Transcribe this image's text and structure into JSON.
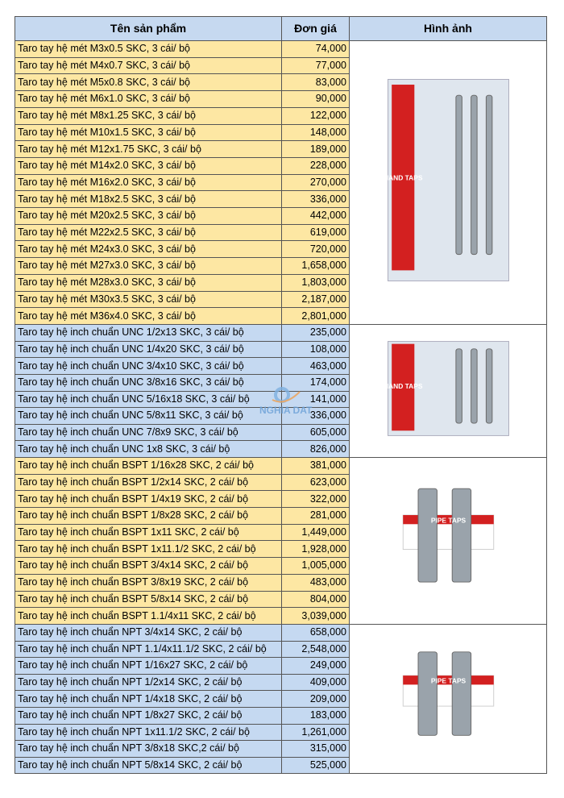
{
  "header": {
    "name": "Tên sản phẩm",
    "price": "Đơn giá",
    "image": "Hình ảnh"
  },
  "watermark": "NGHIA DAT",
  "colors": {
    "header": "#c6d9f0",
    "yellow": "#fde7a3",
    "blue": "#c5d9f1"
  },
  "groups": [
    {
      "color": "yellow",
      "image": {
        "icon": "hand-taps-box-image",
        "label": "HAND TAPS"
      },
      "rows": [
        [
          "Taro tay hệ mét M3x0.5 SKC, 3 cái/ bộ",
          "74,000"
        ],
        [
          "Taro tay hệ mét M4x0.7 SKC, 3 cái/ bộ",
          "77,000"
        ],
        [
          "Taro tay hệ mét M5x0.8 SKC, 3 cái/ bộ",
          "83,000"
        ],
        [
          "Taro tay hệ mét M6x1.0 SKC, 3 cái/ bộ",
          "90,000"
        ],
        [
          "Taro tay hệ mét M8x1.25 SKC, 3 cái/ bộ",
          "122,000"
        ],
        [
          "Taro tay hệ mét M10x1.5 SKC, 3 cái/ bộ",
          "148,000"
        ],
        [
          "Taro tay hệ mét M12x1.75 SKC, 3 cái/ bộ",
          "189,000"
        ],
        [
          "Taro tay hệ mét M14x2.0 SKC, 3 cái/ bộ",
          "228,000"
        ],
        [
          "Taro tay hệ mét M16x2.0 SKC, 3 cái/ bộ",
          "270,000"
        ],
        [
          "Taro tay hệ mét M18x2.5 SKC, 3 cái/ bộ",
          "336,000"
        ],
        [
          "Taro tay hệ mét M20x2.5 SKC, 3 cái/ bộ",
          "442,000"
        ],
        [
          "Taro tay hệ mét M22x2.5 SKC, 3 cái/ bộ",
          "619,000"
        ],
        [
          "Taro tay hệ mét M24x3.0 SKC, 3 cái/ bộ",
          "720,000"
        ],
        [
          "Taro tay hệ mét M27x3.0 SKC, 3 cái/ bộ",
          "1,658,000"
        ],
        [
          "Taro tay hệ mét M28x3.0 SKC, 3 cái/ bộ",
          "1,803,000"
        ],
        [
          "Taro tay hệ mét M30x3.5 SKC, 3 cái/ bộ",
          "2,187,000"
        ],
        [
          "Taro tay hệ mét M36x4.0 SKC, 3 cái/ bộ",
          "2,801,000"
        ]
      ]
    },
    {
      "color": "blue",
      "image": {
        "icon": "hand-taps-unc-image",
        "label": "HAND TAPS"
      },
      "rows": [
        [
          "Taro tay hệ inch chuẩn UNC 1/2x13 SKC, 3 cái/ bộ",
          "235,000"
        ],
        [
          "Taro tay hệ inch chuẩn UNC 1/4x20 SKC, 3 cái/ bộ",
          "108,000"
        ],
        [
          "Taro tay hệ inch chuẩn UNC 3/4x10 SKC, 3 cái/ bộ",
          "463,000"
        ],
        [
          "Taro tay hệ inch chuẩn UNC 3/8x16 SKC, 3 cái/ bộ",
          "174,000"
        ],
        [
          "Taro tay hệ inch chuẩn UNC 5/16x18 SKC, 3 cái/ bộ",
          "141,000"
        ],
        [
          "Taro tay hệ inch chuẩn UNC 5/8x11 SKC, 3 cái/ bộ",
          "336,000"
        ],
        [
          "Taro tay hệ inch chuẩn UNC 7/8x9 SKC, 3 cái/ bộ",
          "605,000"
        ],
        [
          "Taro tay hệ inch chuẩn UNC 1x8 SKC, 3 cái/ bộ",
          "826,000"
        ]
      ]
    },
    {
      "color": "yellow",
      "image": {
        "icon": "pipe-taps-bspt-image",
        "label": "PIPE TAPS"
      },
      "rows": [
        [
          "Taro tay hệ inch chuẩn BSPT 1/16x28 SKC, 2 cái/ bộ",
          "381,000"
        ],
        [
          "Taro tay hệ inch chuẩn BSPT 1/2x14 SKC, 2 cái/ bộ",
          "623,000"
        ],
        [
          "Taro tay hệ inch chuẩn BSPT 1/4x19 SKC, 2 cái/ bộ",
          "322,000"
        ],
        [
          "Taro tay hệ inch chuẩn BSPT 1/8x28 SKC, 2 cái/ bộ",
          "281,000"
        ],
        [
          "Taro tay hệ inch chuẩn BSPT 1x11 SKC, 2 cái/ bộ",
          "1,449,000"
        ],
        [
          "Taro tay hệ inch chuẩn BSPT 1x11.1/2 SKC, 2 cái/ bộ",
          "1,928,000"
        ],
        [
          "Taro tay hệ inch chuẩn BSPT 3/4x14 SKC, 2 cái/ bộ",
          "1,005,000"
        ],
        [
          "Taro tay hệ inch chuẩn BSPT 3/8x19 SKC, 2 cái/ bộ",
          "483,000"
        ],
        [
          "Taro tay hệ inch chuẩn BSPT 5/8x14 SKC, 2 cái/ bộ",
          "804,000"
        ],
        [
          "Taro tay hệ inch chuẩn BSPT 1.1/4x11 SKC, 2 cái/ bộ",
          "3,039,000"
        ]
      ]
    },
    {
      "color": "blue",
      "image": {
        "icon": "pipe-taps-npt-image",
        "label": "PIPE TAPS"
      },
      "rows": [
        [
          "Taro tay hệ inch chuẩn NPT 3/4x14 SKC, 2 cái/ bộ",
          "658,000"
        ],
        [
          "Taro tay hệ inch chuẩn NPT 1.1/4x11.1/2 SKC, 2 cái/ bộ",
          "2,548,000"
        ],
        [
          "Taro tay hệ inch chuẩn NPT 1/16x27 SKC, 2 cái/ bộ",
          "249,000"
        ],
        [
          "Taro tay hệ inch chuẩn NPT 1/2x14 SKC, 2 cái/ bộ",
          "409,000"
        ],
        [
          "Taro tay hệ inch chuẩn NPT 1/4x18 SKC, 2 cái/ bộ",
          "209,000"
        ],
        [
          "Taro tay hệ inch chuẩn NPT 1/8x27 SKC, 2 cái/ bộ",
          "183,000"
        ],
        [
          "Taro tay hệ inch chuẩn NPT 1x11.1/2 SKC, 2 cái/ bộ",
          "1,261,000"
        ],
        [
          "Taro tay hệ inch chuẩn NPT 3/8x18 SKC,2 cái/ bộ",
          "315,000"
        ],
        [
          "Taro tay hệ inch chuẩn NPT 5/8x14 SKC, 2 cái/ bộ",
          "525,000"
        ]
      ]
    }
  ]
}
